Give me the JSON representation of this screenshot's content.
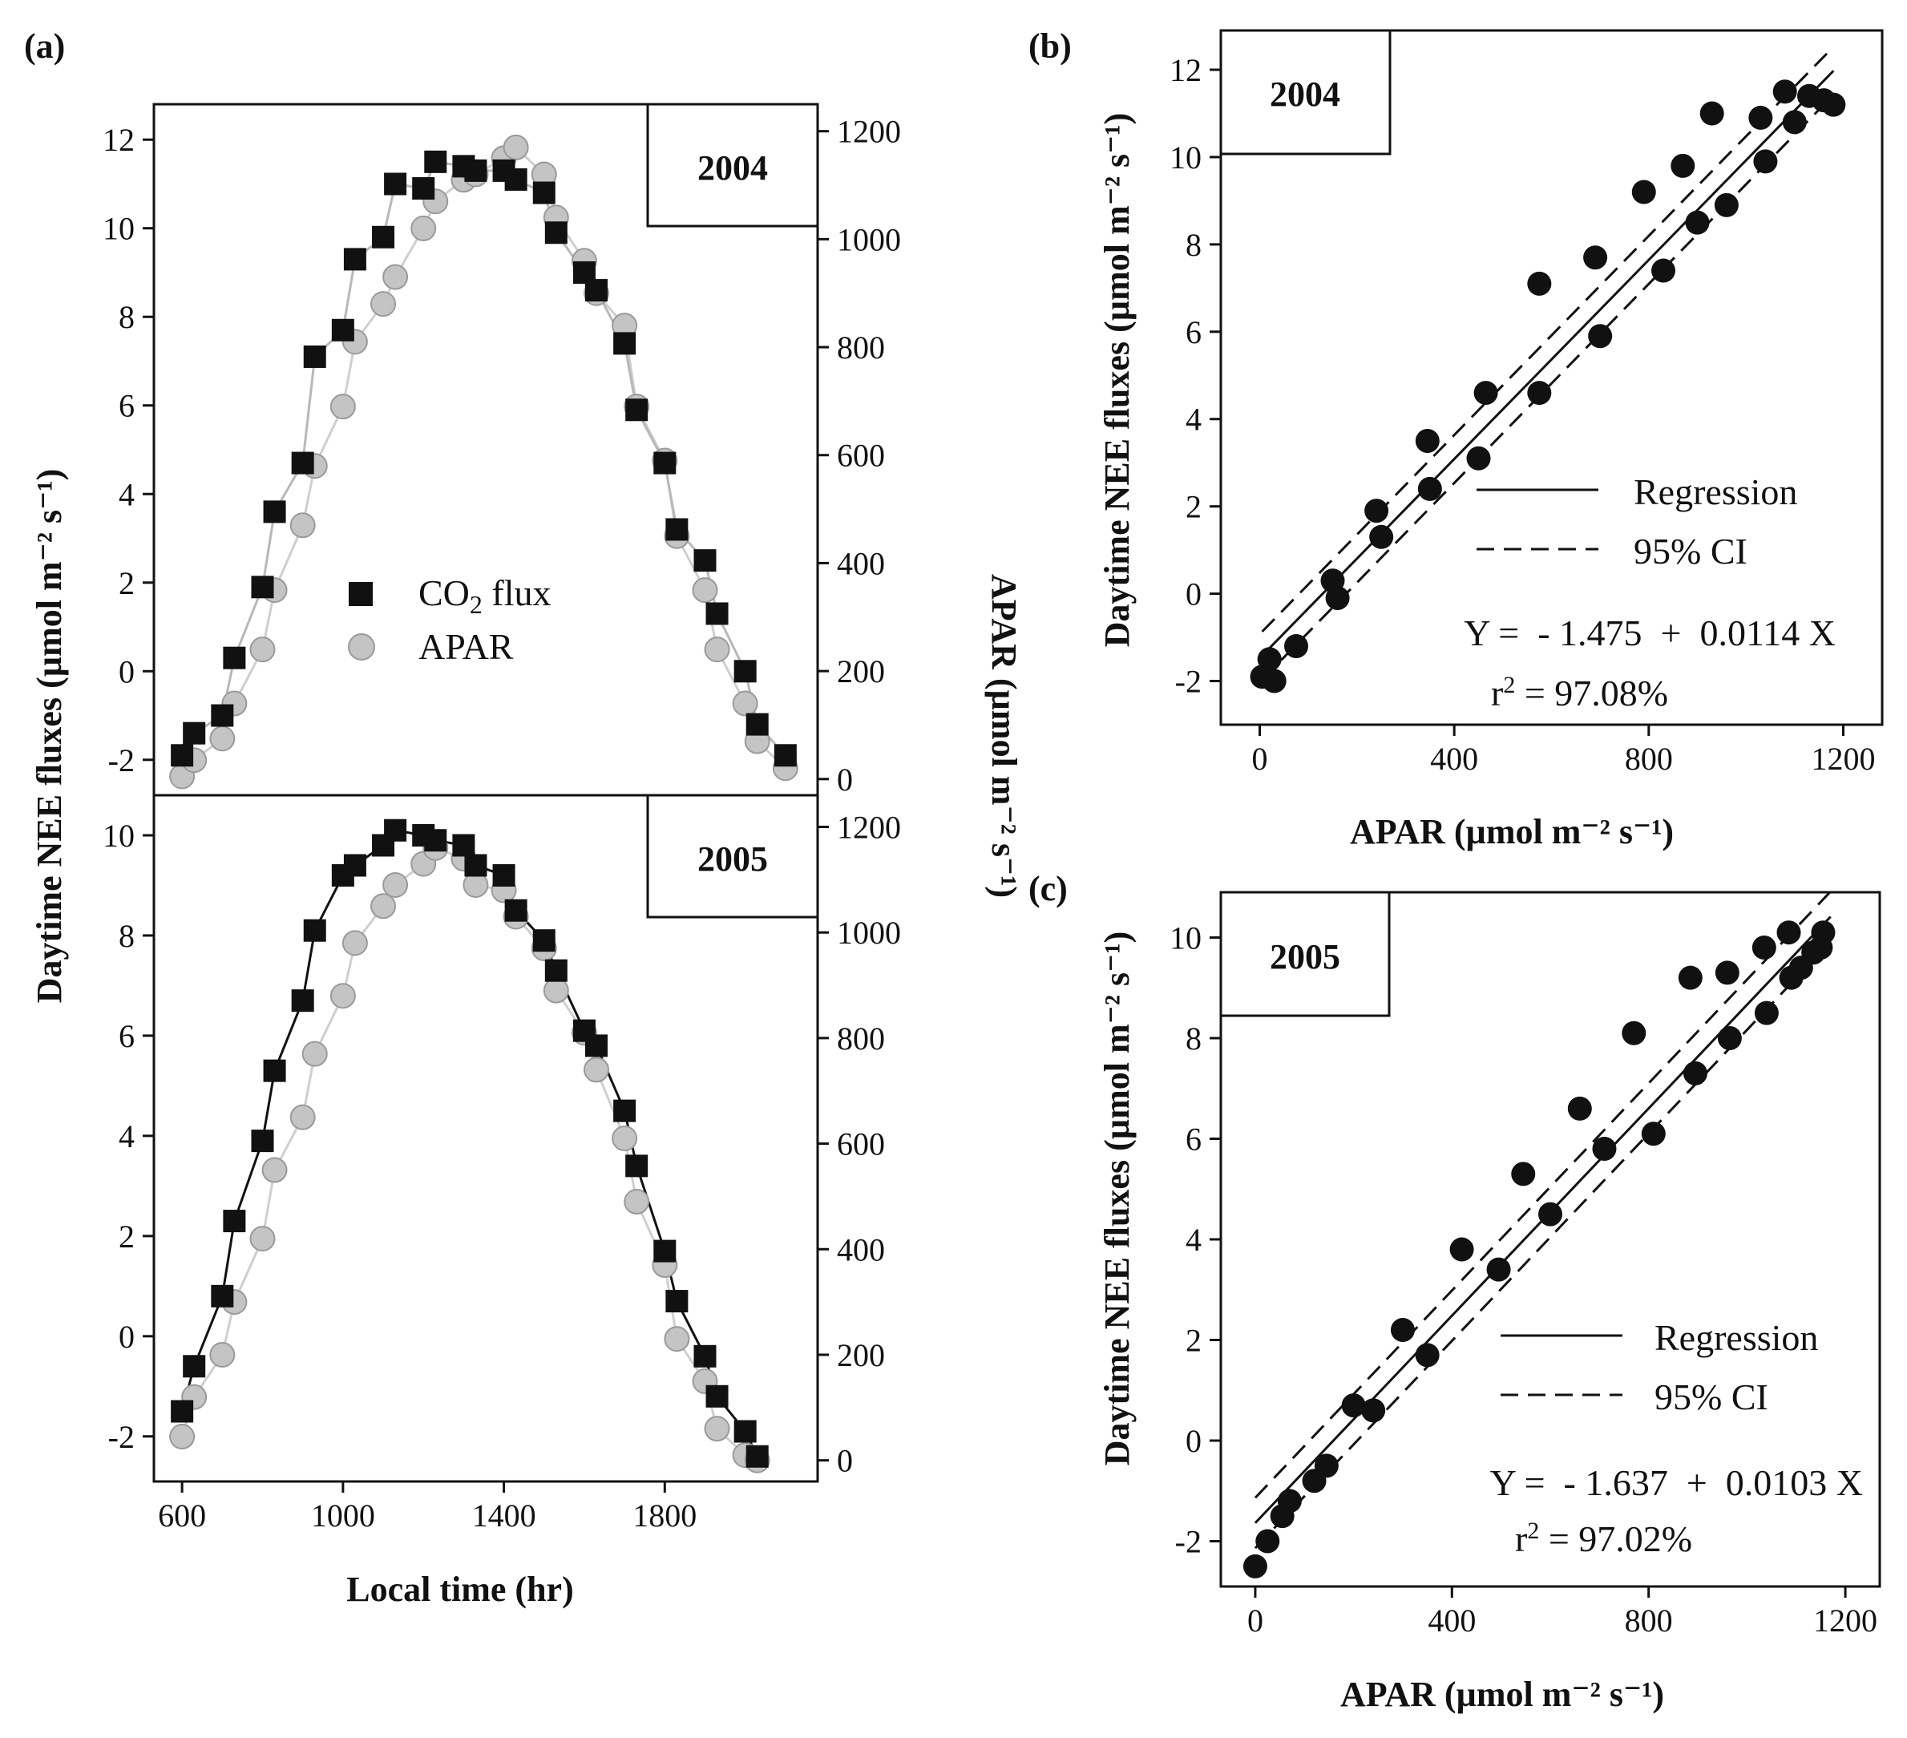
{
  "chart_data": [
    {
      "type": "line",
      "panel": "(a)",
      "subplot": "2004",
      "year_label": "2004",
      "xlabel": "Local time (hr)",
      "ylabel": "Daytime NEE fluxes (µmol m⁻² s⁻¹)",
      "y2label": "APAR (µmol m⁻² s⁻¹)",
      "xlim": [
        530,
        2180
      ],
      "ylim": [
        -2.8,
        12.8
      ],
      "y2lim": [
        -30,
        1250
      ],
      "ytick_labels": [
        "-2",
        "0",
        "2",
        "4",
        "6",
        "8",
        "10",
        "12"
      ],
      "y2tick_labels": [
        "0",
        "200",
        "400",
        "600",
        "800",
        "1000",
        "1200"
      ],
      "legend": {
        "position": "center-left",
        "entries": [
          "CO₂ flux",
          "APAR"
        ]
      },
      "series": [
        {
          "name": "CO₂ flux",
          "axis": "left",
          "color": "#111111",
          "marker": "square",
          "x": [
            600,
            630,
            700,
            730,
            800,
            830,
            900,
            930,
            1000,
            1030,
            1100,
            1130,
            1200,
            1230,
            1300,
            1330,
            1400,
            1430,
            1500,
            1530,
            1600,
            1630,
            1700,
            1730,
            1800,
            1830,
            1900,
            1930,
            2000,
            2030,
            2100
          ],
          "y": [
            -1.9,
            -1.4,
            -1.0,
            0.3,
            1.9,
            3.6,
            4.7,
            7.1,
            7.7,
            9.3,
            9.8,
            11.0,
            10.9,
            11.5,
            11.4,
            11.3,
            11.3,
            11.1,
            10.8,
            9.9,
            9.0,
            8.6,
            7.4,
            5.9,
            4.7,
            3.2,
            2.5,
            1.3,
            0.0,
            -1.2,
            -1.9
          ]
        },
        {
          "name": "APAR",
          "axis": "right",
          "color": "#c4c4c4",
          "marker": "circle",
          "x": [
            600,
            630,
            700,
            730,
            800,
            830,
            900,
            930,
            1000,
            1030,
            1100,
            1130,
            1200,
            1230,
            1300,
            1330,
            1400,
            1430,
            1500,
            1530,
            1600,
            1630,
            1700,
            1730,
            1800,
            1830,
            1900,
            1930,
            2000,
            2030,
            2100
          ],
          "y": [
            5,
            35,
            75,
            140,
            240,
            350,
            470,
            580,
            690,
            810,
            880,
            930,
            1020,
            1070,
            1110,
            1120,
            1150,
            1170,
            1120,
            1040,
            960,
            900,
            840,
            690,
            590,
            450,
            350,
            240,
            140,
            70,
            20
          ]
        }
      ]
    },
    {
      "type": "line",
      "panel": "(a)",
      "subplot": "2005",
      "year_label": "2005",
      "xlabel": "Local time (hr)",
      "ylabel": "Daytime NEE fluxes (µmol m⁻² s⁻¹)",
      "y2label": "APAR (µmol m⁻² s⁻¹)",
      "xlim": [
        530,
        2180
      ],
      "ylim": [
        -2.9,
        10.8
      ],
      "y2lim": [
        -40,
        1260
      ],
      "xtick_labels": [
        "600",
        "1000",
        "1400",
        "1800"
      ],
      "ytick_labels": [
        "-2",
        "0",
        "2",
        "4",
        "6",
        "8",
        "10"
      ],
      "y2tick_labels": [
        "0",
        "200",
        "400",
        "600",
        "800",
        "1000",
        "1200"
      ],
      "series": [
        {
          "name": "CO₂ flux",
          "axis": "left",
          "color": "#111111",
          "marker": "square",
          "x": [
            600,
            630,
            700,
            730,
            800,
            830,
            900,
            930,
            1000,
            1030,
            1100,
            1130,
            1200,
            1230,
            1300,
            1330,
            1400,
            1430,
            1500,
            1530,
            1600,
            1630,
            1700,
            1730,
            1800,
            1830,
            1900,
            1930,
            2000,
            2030
          ],
          "y": [
            -1.5,
            -0.6,
            0.8,
            2.3,
            3.9,
            5.3,
            6.7,
            8.1,
            9.2,
            9.4,
            9.8,
            10.1,
            10.0,
            9.9,
            9.8,
            9.4,
            9.2,
            8.5,
            7.9,
            7.3,
            6.1,
            5.8,
            4.5,
            3.4,
            1.7,
            0.7,
            -0.4,
            -1.2,
            -1.9,
            -2.4
          ]
        },
        {
          "name": "APAR",
          "axis": "right",
          "color": "#c4c4c4",
          "marker": "circle",
          "x": [
            600,
            630,
            700,
            730,
            800,
            830,
            900,
            930,
            1000,
            1030,
            1100,
            1130,
            1200,
            1230,
            1300,
            1330,
            1400,
            1430,
            1500,
            1530,
            1600,
            1630,
            1700,
            1730,
            1800,
            1830,
            1900,
            1930,
            2000,
            2030
          ],
          "y": [
            45,
            120,
            200,
            300,
            420,
            550,
            650,
            770,
            880,
            980,
            1050,
            1090,
            1130,
            1160,
            1140,
            1090,
            1080,
            1030,
            970,
            890,
            810,
            740,
            610,
            490,
            370,
            230,
            150,
            60,
            10,
            0
          ]
        }
      ]
    },
    {
      "type": "scatter",
      "panel": "(b)",
      "year_label": "2004",
      "xlabel": "APAR (µmol m⁻² s⁻¹)",
      "ylabel": "Daytime NEE fluxes (µmol m⁻² s⁻¹)",
      "xlim": [
        -80,
        1280
      ],
      "ylim": [
        -3.0,
        12.9
      ],
      "xtick_labels": [
        "0",
        "400",
        "800",
        "1200"
      ],
      "ytick_labels": [
        "-2",
        "0",
        "2",
        "4",
        "6",
        "8",
        "10",
        "12"
      ],
      "legend": {
        "position": "lower-right",
        "entries": [
          "Regression",
          "95% CI"
        ]
      },
      "equation": "Y =  - 1.475  +  0.0114 X",
      "r2_prefix": "r",
      "r2_suffix": " = 97.08%",
      "regression": {
        "intercept": -1.475,
        "slope": 0.0114,
        "ci_offset": 0.55,
        "x_range": [
          5,
          1180
        ]
      },
      "points": {
        "x": [
          5,
          20,
          30,
          75,
          150,
          160,
          240,
          250,
          345,
          350,
          450,
          465,
          575,
          575,
          690,
          700,
          790,
          830,
          870,
          900,
          930,
          960,
          1030,
          1040,
          1080,
          1100,
          1130,
          1160,
          1180
        ],
        "y": [
          -1.9,
          -1.5,
          -2.0,
          -1.2,
          0.3,
          -0.1,
          1.9,
          1.3,
          3.5,
          2.4,
          3.1,
          4.6,
          7.1,
          4.6,
          7.7,
          5.9,
          9.2,
          7.4,
          9.8,
          8.5,
          11.0,
          8.9,
          10.9,
          9.9,
          11.5,
          10.8,
          11.4,
          11.3,
          11.2
        ]
      }
    },
    {
      "type": "scatter",
      "panel": "(c)",
      "year_label": "2005",
      "xlabel": "APAR (µmol m⁻² s⁻¹)",
      "ylabel": "Daytime NEE fluxes (µmol m⁻² s⁻¹)",
      "xlim": [
        -70,
        1270
      ],
      "ylim": [
        -2.9,
        10.9
      ],
      "xtick_labels": [
        "0",
        "400",
        "800",
        "1200"
      ],
      "ytick_labels": [
        "-2",
        "0",
        "2",
        "4",
        "6",
        "8",
        "10"
      ],
      "legend": {
        "position": "lower-right",
        "entries": [
          "Regression",
          "95% CI"
        ]
      },
      "equation": "Y =  - 1.637  +  0.0103 X",
      "r2_prefix": "r",
      "r2_suffix": " = 97.02%",
      "regression": {
        "intercept": -1.637,
        "slope": 0.0103,
        "ci_offset": 0.5,
        "x_range": [
          0,
          1170
        ]
      },
      "points": {
        "x": [
          0,
          25,
          55,
          70,
          120,
          145,
          200,
          240,
          300,
          350,
          420,
          495,
          545,
          600,
          660,
          710,
          770,
          810,
          885,
          895,
          960,
          965,
          1035,
          1040,
          1085,
          1090,
          1110,
          1135,
          1150,
          1155
        ],
        "y": [
          -2.5,
          -2.0,
          -1.5,
          -1.2,
          -0.8,
          -0.5,
          0.7,
          0.6,
          2.2,
          1.7,
          3.8,
          3.4,
          5.3,
          4.5,
          6.6,
          5.8,
          8.1,
          6.1,
          9.2,
          7.3,
          9.3,
          8.0,
          9.8,
          8.5,
          10.1,
          9.2,
          9.4,
          9.7,
          9.8,
          10.1
        ]
      }
    }
  ]
}
